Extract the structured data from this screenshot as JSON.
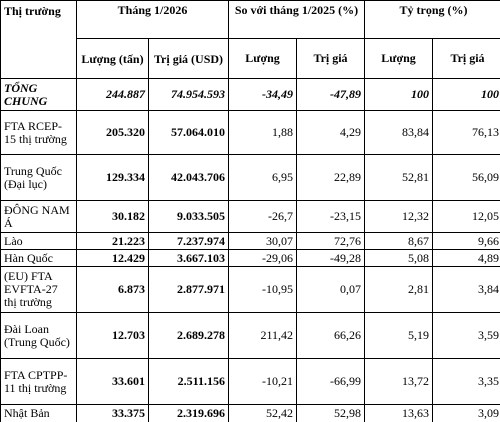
{
  "headers": {
    "market": "Thị trường",
    "month": "Tháng 1/2026",
    "compare": "So với tháng 1/2025 (%)",
    "share": "Tỷ trọng (%)",
    "qty_tons": "Lượng (tấn)",
    "value_usd": "Trị giá (USD)",
    "qty": "Lượng",
    "value": "Trị giá"
  },
  "total": {
    "name": "TỔNG CHUNG",
    "qty": "244.887",
    "value": "74.954.593",
    "qty_change": "-34,49",
    "value_change": "-47,89",
    "qty_share": "100",
    "value_share": "100"
  },
  "rows": [
    {
      "name": "FTA RCEP-15 thị trường",
      "qty": "205.320",
      "value": "57.064.010",
      "qty_change": "1,88",
      "value_change": "4,29",
      "qty_share": "83,84",
      "value_share": "76,13"
    },
    {
      "name": "Trung Quốc (Đại lục)",
      "qty": "129.334",
      "value": "42.043.706",
      "qty_change": "6,95",
      "value_change": "22,89",
      "qty_share": "52,81",
      "value_share": "56,09"
    },
    {
      "name": "ĐÔNG NAM Á",
      "qty": "30.182",
      "value": "9.033.505",
      "qty_change": "-26,7",
      "value_change": "-23,15",
      "qty_share": "12,32",
      "value_share": "12,05"
    },
    {
      "name": "Lào",
      "qty": "21.223",
      "value": "7.237.974",
      "qty_change": "30,07",
      "value_change": "72,76",
      "qty_share": "8,67",
      "value_share": "9,66"
    },
    {
      "name": "Hàn Quốc",
      "qty": "12.429",
      "value": "3.667.103",
      "qty_change": "-29,06",
      "value_change": "-49,28",
      "qty_share": "5,08",
      "value_share": "4,89"
    },
    {
      "name": "(EU) FTA EVFTA-27 thị trường",
      "qty": "6.873",
      "value": "2.877.971",
      "qty_change": "-10,95",
      "value_change": "0,07",
      "qty_share": "2,81",
      "value_share": "3,84"
    },
    {
      "name": "Đài Loan (Trung Quốc)",
      "qty": "12.703",
      "value": "2.689.278",
      "qty_change": "211,42",
      "value_change": "66,26",
      "qty_share": "5,19",
      "value_share": "3,59"
    },
    {
      "name": "FTA CPTPP-11 thị trường",
      "qty": "33.601",
      "value": "2.511.156",
      "qty_change": "-10,21",
      "value_change": "-66,99",
      "qty_share": "13,72",
      "value_share": "3,35"
    },
    {
      "name": "Nhật Bản",
      "qty": "33.375",
      "value": "2.319.696",
      "qty_change": "52,42",
      "value_change": "52,98",
      "qty_share": "13,63",
      "value_share": "3,09"
    }
  ]
}
